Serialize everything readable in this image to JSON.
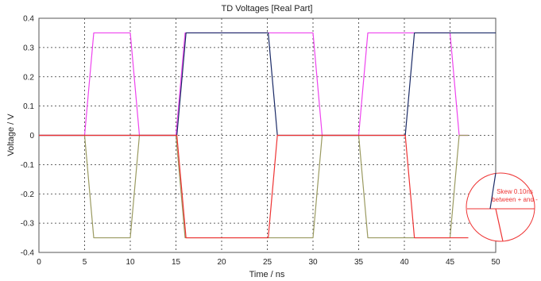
{
  "chart_data": {
    "type": "line",
    "title": "TD Voltages [Real Part]",
    "xlabel": "Time / ns",
    "ylabel": "Voltage / V",
    "xlim": [
      0,
      50
    ],
    "ylim": [
      -0.4,
      0.4
    ],
    "xticks": [
      0,
      5,
      10,
      15,
      20,
      25,
      30,
      35,
      40,
      45,
      50
    ],
    "yticks": [
      0.4,
      0.3,
      0.2,
      0.1,
      0,
      -0.1,
      -0.2,
      -0.3,
      -0.4
    ],
    "ytick_labels": [
      "0.4",
      "0.3",
      "0.2",
      "0.1",
      "0",
      "-0.1",
      "-0.2",
      "-0.3",
      "-0.4"
    ],
    "grid": true,
    "legend": "none",
    "series": [
      {
        "color": "#ee44ee",
        "x": [
          0,
          5,
          6,
          10,
          11,
          15,
          16,
          20,
          21,
          25,
          26,
          30,
          31,
          35,
          36,
          40,
          41,
          45,
          46,
          47
        ],
        "y": [
          0,
          0,
          0.35,
          0.35,
          0,
          0,
          0.35,
          0.35,
          0.35,
          0.35,
          0.35,
          0.35,
          0,
          0,
          0.35,
          0.35,
          0.35,
          0.35,
          0,
          0
        ]
      },
      {
        "color": "#9a9a60",
        "x": [
          0,
          5,
          6,
          10,
          11,
          15,
          16,
          20,
          21,
          25,
          26,
          30,
          31,
          35,
          36,
          40,
          41,
          45,
          46,
          47
        ],
        "y": [
          0,
          0,
          -0.35,
          -0.35,
          0,
          0,
          -0.35,
          -0.35,
          -0.35,
          -0.35,
          -0.35,
          -0.35,
          0,
          0,
          -0.35,
          -0.35,
          -0.35,
          -0.35,
          0,
          0
        ]
      },
      {
        "color": "#1a2a66",
        "x": [
          0,
          15.1,
          16.1,
          25.1,
          26.1,
          40.1,
          41.1,
          50
        ],
        "y": [
          0,
          0,
          0.35,
          0.35,
          0,
          0,
          0.35,
          0.35
        ]
      },
      {
        "color": "#ee3333",
        "x": [
          0,
          15.1,
          16.1,
          25.1,
          26.1,
          40.1,
          41.1,
          47
        ],
        "y": [
          0,
          0,
          -0.35,
          -0.35,
          0,
          0,
          -0.35,
          -0.35
        ]
      }
    ],
    "annotations": [
      {
        "text_lines": [
          "Skew 0.10ns",
          "between + and -"
        ],
        "color": "#ee3333"
      }
    ]
  }
}
